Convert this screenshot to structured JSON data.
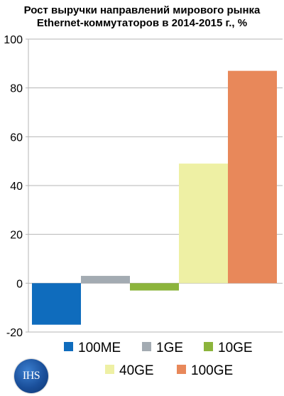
{
  "chart_data": {
    "type": "bar",
    "title_line1": "Рост выручки направлений мирового рынка",
    "title_line2": "Ethernet-коммутаторов в 2014-2015 г., %",
    "categories": [
      "100ME",
      "1GE",
      "10GE",
      "40GE",
      "100GE"
    ],
    "values": [
      -17,
      3,
      -3,
      49,
      87
    ],
    "colors": [
      "#0f6cbd",
      "#a3abb2",
      "#8cb43c",
      "#eef0a4",
      "#e8885a"
    ],
    "ylim": [
      -20,
      100
    ],
    "yticks": [
      -20,
      0,
      20,
      40,
      60,
      80,
      100
    ],
    "grid": true,
    "legend_position": "bottom"
  },
  "logo": {
    "text": "IHS"
  }
}
